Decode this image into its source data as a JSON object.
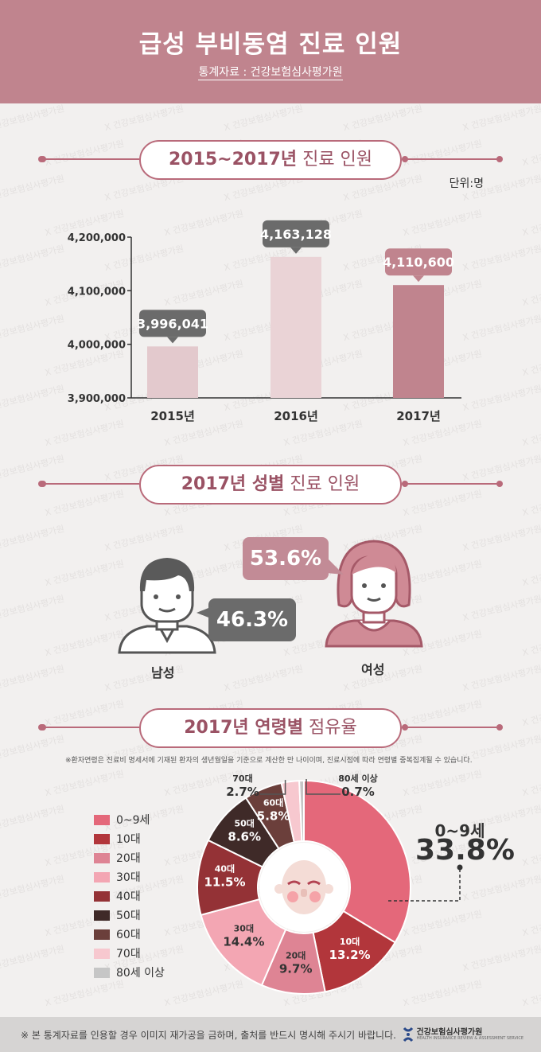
{
  "header": {
    "title": "급성 부비동염 진료 인원",
    "source": "통계자료 : 건강보험심사평가원"
  },
  "colors": {
    "header_bg": "#c0848e",
    "accent": "#b96a7a",
    "bar_2015": "#e3c9cd",
    "bar_2016": "#ead3d6",
    "bar_2017": "#c0848e",
    "callout_gray": "#6b6b6b",
    "callout_pink": "#c0848e"
  },
  "section1": {
    "title_bold": "2015~2017년",
    "title_rest": " 진료 인원",
    "unit": "단위:명"
  },
  "section2": {
    "title_bold": "2017년 성별",
    "title_rest": " 진료 인원",
    "male_label": "남성",
    "female_label": "여성",
    "male_value": "46.3%",
    "female_value": "53.6%"
  },
  "section3": {
    "title_bold": "2017년 연령별",
    "title_rest": " 점유율",
    "note": "※환자연령은 진료비 명세서에 기재된 환자의 생년월일을 기준으로 계산한 만 나이이며, 진료시점에 따라 연령별 중복집계될 수 있습니다.",
    "highlight_label": "0~9세",
    "highlight_value": "33.8%"
  },
  "chart_data": [
    {
      "type": "bar",
      "categories": [
        "2015년",
        "2016년",
        "2017년"
      ],
      "values": [
        3996041,
        4163128,
        4110600
      ],
      "value_labels": [
        "3,996,041",
        "4,163,128",
        "4,110,600"
      ],
      "ylim": [
        3900000,
        4200000
      ],
      "yticks": [
        3900000,
        4000000,
        4100000,
        4200000
      ],
      "ytick_labels": [
        "3,900,000",
        "4,000,000",
        "4,100,000",
        "4,200,000"
      ],
      "unit": "단위:명"
    },
    {
      "type": "pie",
      "donut": true,
      "slices": [
        {
          "label": "0~9세",
          "value": 33.8,
          "value_label": "33.8%",
          "color": "#e4687a"
        },
        {
          "label": "10대",
          "value": 13.2,
          "value_label": "13.2%",
          "color": "#b2363b",
          "chart_label": "10대"
        },
        {
          "label": "20대",
          "value": 9.7,
          "value_label": "9.7%",
          "color": "#de8494",
          "chart_label": "20대"
        },
        {
          "label": "30대",
          "value": 14.4,
          "value_label": "14.4%",
          "color": "#f3a6b3",
          "chart_label": "30대"
        },
        {
          "label": "40대",
          "value": 11.5,
          "value_label": "11.5%",
          "color": "#943236",
          "chart_label": "40대"
        },
        {
          "label": "50대",
          "value": 8.6,
          "value_label": "8.6%",
          "color": "#3f2a28",
          "chart_label": "50대"
        },
        {
          "label": "60대",
          "value": 5.8,
          "value_label": "5.8%",
          "color": "#6b3f3b",
          "chart_label": "60대"
        },
        {
          "label": "70대",
          "value": 2.7,
          "value_label": "2.7%",
          "color": "#f7c8cf",
          "chart_label": "70대"
        },
        {
          "label": "80세 이상",
          "value": 0.7,
          "value_label": "0.7%",
          "color": "#c6c6c6",
          "chart_label": "80세 이상"
        }
      ]
    }
  ],
  "footer": {
    "note": "※ 본 통계자료를 인용할 경우 이미지 재가공을 금하며, 출처를 반드시 명시해 주시기 바랍니다.",
    "logo_name": "건강보험심사평가원",
    "logo_sub": "HEALTH INSURANCE REVIEW & ASSESSMENT SERVICE",
    "watermark": "건강보험심사평가원"
  }
}
